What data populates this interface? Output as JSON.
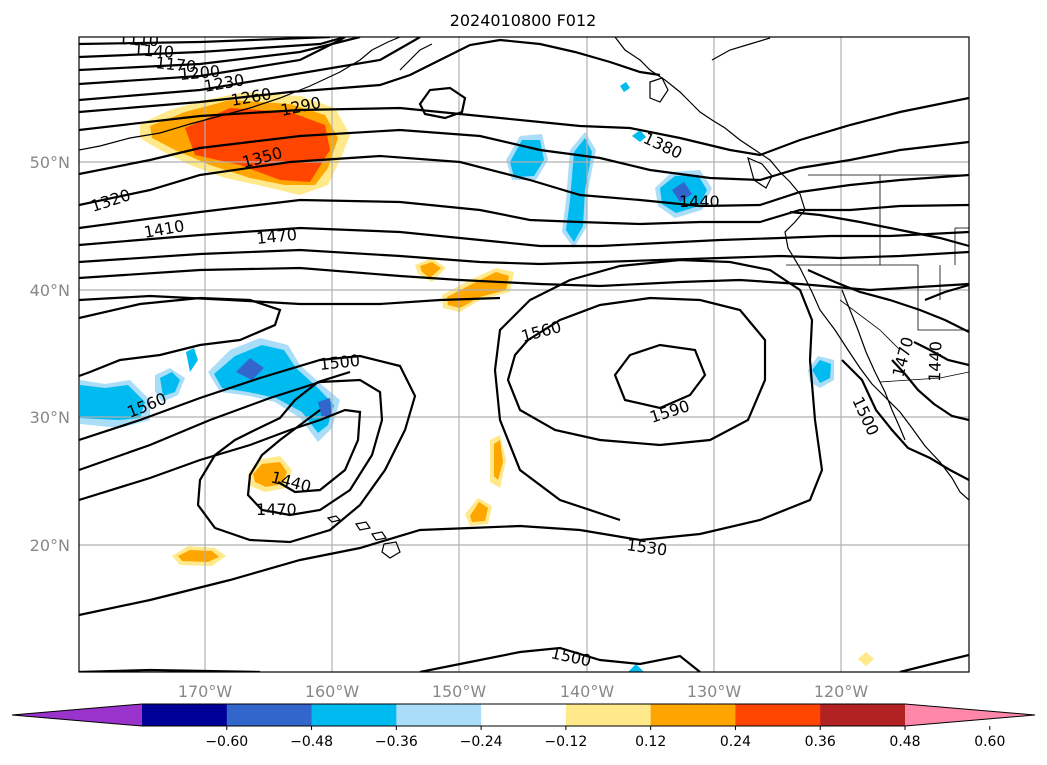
{
  "title": "2024010800 F012",
  "lat_labels": [
    "50°N",
    "40°N",
    "30°N",
    "20°N"
  ],
  "lon_labels": [
    "170°W",
    "160°W",
    "150°W",
    "140°W",
    "130°W",
    "120°W"
  ],
  "contour_labels": [
    "1110",
    "1140",
    "1170",
    "1200",
    "1230",
    "1260",
    "1290",
    "1320",
    "1350",
    "1380",
    "1410",
    "1440",
    "1470",
    "1500",
    "1530",
    "1560",
    "1590"
  ],
  "colorbar": {
    "ticks": [
      "−0.60",
      "−0.48",
      "−0.36",
      "−0.24",
      "−0.12",
      "0.12",
      "0.24",
      "0.36",
      "0.48",
      "0.60"
    ],
    "colors": [
      "#9933cc",
      "#000099",
      "#3366cc",
      "#00bbf0",
      "#aaddf8",
      "#ffffff",
      "#ffe98a",
      "#ffa500",
      "#ff4500",
      "#b22222",
      "#ff88aa"
    ]
  }
}
